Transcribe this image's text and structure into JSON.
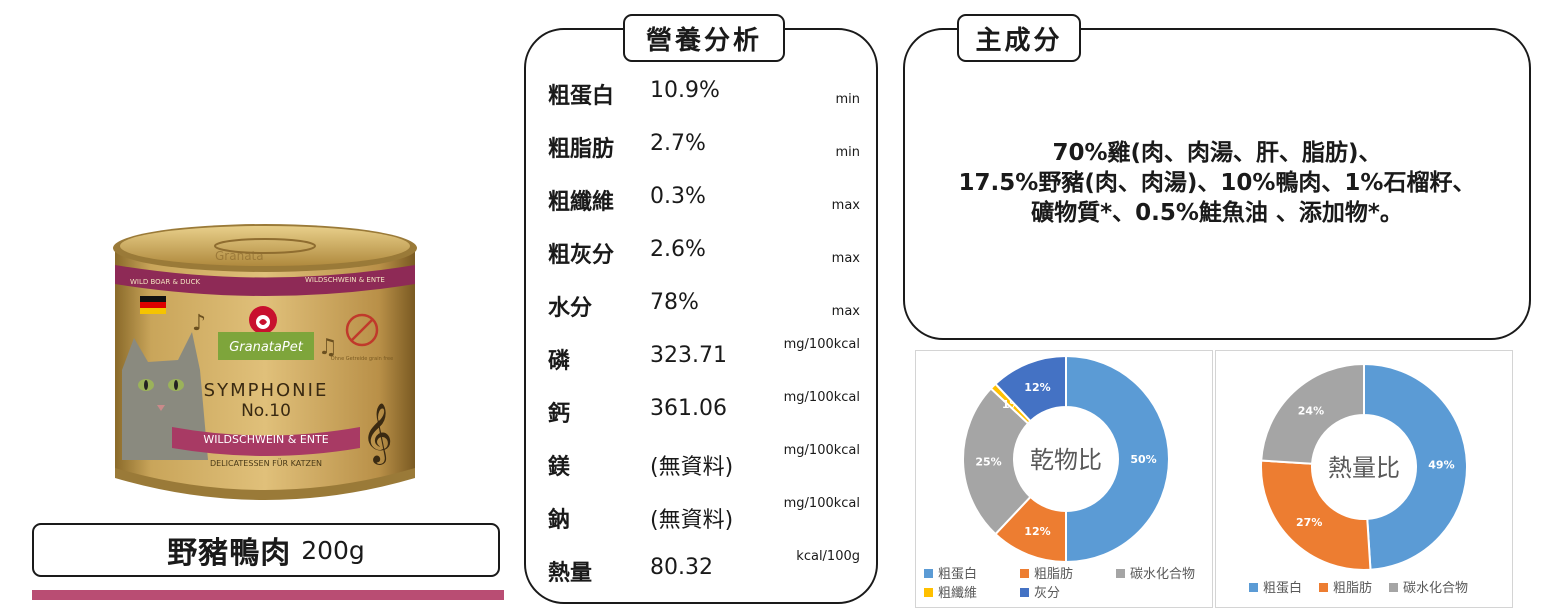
{
  "product": {
    "name": "野豬鴨肉",
    "weight": "200g",
    "accent_color": "#b94d73",
    "can": {
      "band_top_left": "WILD BOAR & DUCK",
      "band_top_right": "WILDSCHWEIN & ENTE",
      "brand": "GranataPet",
      "line1": "SYMPHONIE",
      "line2": "No.10",
      "ribbon": "WILDSCHWEIN & ENTE",
      "subtitle": "DELICATESSEN FÜR KATZEN",
      "grain_free": "Ohne Getreide grain free",
      "brand_top": "Granata"
    }
  },
  "nutrition": {
    "title": "營養分析",
    "rows": [
      {
        "name": "粗蛋白",
        "value": "10.9%",
        "unit": "min"
      },
      {
        "name": "粗脂肪",
        "value": "2.7%",
        "unit": "min"
      },
      {
        "name": "粗纖維",
        "value": "0.3%",
        "unit": "max"
      },
      {
        "name": "粗灰分",
        "value": "2.6%",
        "unit": "max"
      },
      {
        "name": "水分",
        "value": "78%",
        "unit": "max"
      },
      {
        "name": "磷",
        "value": "323.71",
        "unit": "mg/100kcal"
      },
      {
        "name": "鈣",
        "value": "361.06",
        "unit": "mg/100kcal"
      },
      {
        "name": "鎂",
        "value": "(無資料)",
        "unit": "mg/100kcal"
      },
      {
        "name": "鈉",
        "value": "(無資料)",
        "unit": "mg/100kcal"
      },
      {
        "name": "熱量",
        "value": "80.32",
        "unit": "kcal/100g"
      }
    ]
  },
  "ingredients": {
    "title": "主成分",
    "lines": [
      "70%雞(肉、肉湯、肝、脂肪)、",
      "17.5%野豬(肉、肉湯)、10%鴨肉、1%石榴籽、",
      "礦物質*、0.5%鮭魚油 、添加物*。"
    ]
  },
  "chart_data": [
    {
      "type": "pie",
      "center_label": "乾物比",
      "categories": [
        "粗蛋白",
        "粗脂肪",
        "碳水化合物",
        "粗纖維",
        "灰分"
      ],
      "values": [
        50,
        12,
        25,
        1,
        12
      ],
      "labels": [
        "50%",
        "12%",
        "25%",
        "1%",
        "12%"
      ],
      "colors": [
        "#5b9bd5",
        "#ed7d31",
        "#a5a5a5",
        "#ffc000",
        "#4472c4"
      ],
      "legend_position": "bottom"
    },
    {
      "type": "pie",
      "center_label": "熱量比",
      "categories": [
        "粗蛋白",
        "粗脂肪",
        "碳水化合物"
      ],
      "values": [
        49,
        27,
        24
      ],
      "labels": [
        "49%",
        "27%",
        "24%"
      ],
      "colors": [
        "#5b9bd5",
        "#ed7d31",
        "#a5a5a5"
      ],
      "legend_position": "bottom"
    }
  ]
}
